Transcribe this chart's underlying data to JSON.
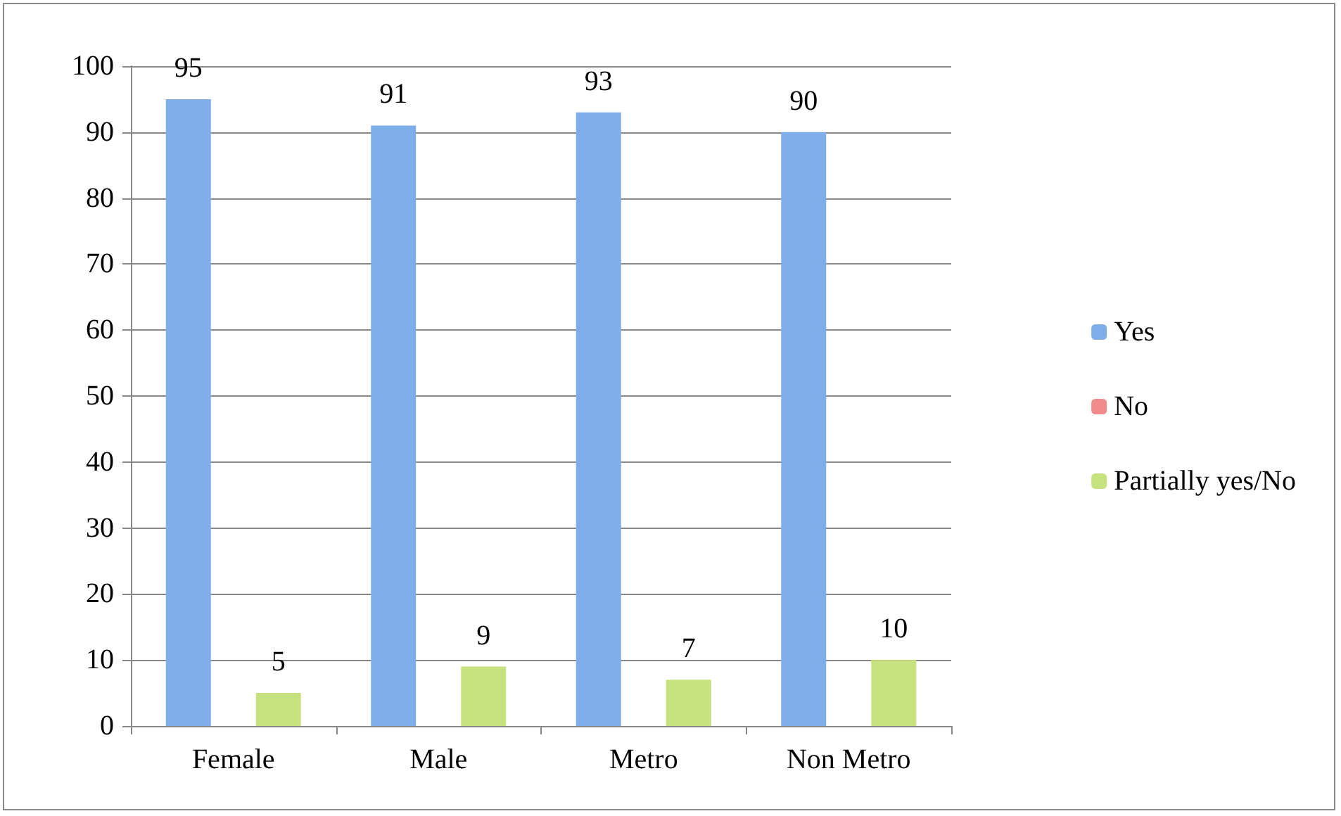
{
  "chart_data": {
    "type": "bar",
    "categories": [
      "Female",
      "Male",
      "Metro",
      "Non Metro"
    ],
    "series": [
      {
        "name": "Yes",
        "color": "#7eaeea",
        "values": [
          95,
          91,
          93,
          90
        ],
        "value_labels": [
          "95",
          "91",
          "93",
          "90"
        ]
      },
      {
        "name": "No",
        "color": "#f08c8c",
        "values": [
          0,
          0,
          0,
          0
        ],
        "value_labels": [
          null,
          null,
          null,
          null
        ]
      },
      {
        "name": "Partially yes/No",
        "color": "#c6e27e",
        "values": [
          5,
          9,
          7,
          10
        ],
        "value_labels": [
          "5",
          "9",
          "7",
          "10"
        ]
      }
    ],
    "ylim": [
      0,
      100
    ],
    "yticks": [
      0,
      10,
      20,
      30,
      40,
      50,
      60,
      70,
      80,
      90,
      100
    ],
    "grid": "y",
    "legend": "right"
  }
}
